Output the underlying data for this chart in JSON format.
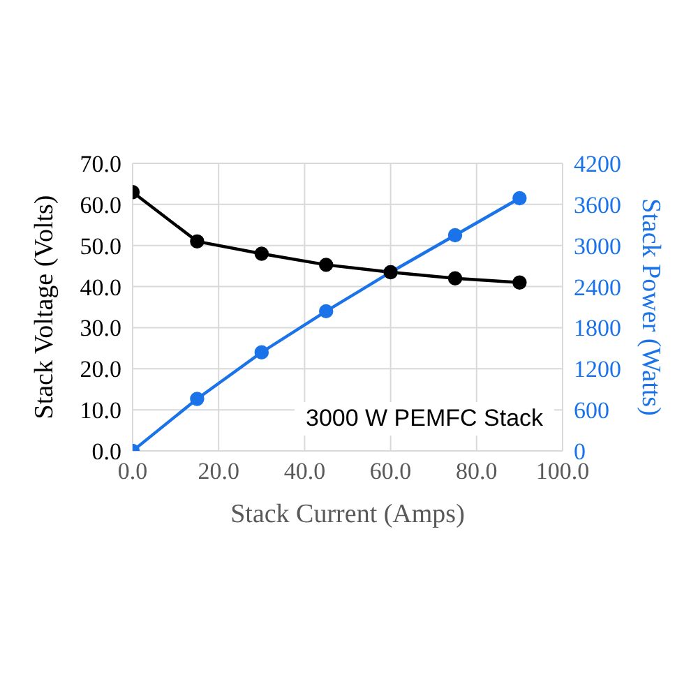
{
  "chart_data": {
    "type": "line",
    "x": [
      0,
      15,
      30,
      45,
      60,
      75,
      90
    ],
    "xlabel": "Stack Current (Amps)",
    "ylabel": "Stack Voltage (Volts)",
    "y2label": "Stack Power (Watts)",
    "series": [
      {
        "color": "#000000",
        "values": [
          63,
          51,
          48,
          45.3,
          43.5,
          42,
          41
        ]
      },
      {
        "color": "#1a73e8",
        "axis": "y2",
        "values": [
          0,
          760,
          1440,
          2040,
          2610,
          3150,
          3690
        ]
      }
    ],
    "xlim": [
      0,
      100
    ],
    "xticks": [
      {
        "value": 0,
        "label": "0.0"
      },
      {
        "value": 20,
        "label": "20.0"
      },
      {
        "value": 40,
        "label": "40.0"
      },
      {
        "value": 60,
        "label": "60.0"
      },
      {
        "value": 80,
        "label": "80.0"
      },
      {
        "value": 100,
        "label": "100.0"
      }
    ],
    "ylim": [
      0,
      70
    ],
    "yticks": [
      {
        "value": 0,
        "label": "0.0"
      },
      {
        "value": 10,
        "label": "10.0"
      },
      {
        "value": 20,
        "label": "20.0"
      },
      {
        "value": 30,
        "label": "30.0"
      },
      {
        "value": 40,
        "label": "40.0"
      },
      {
        "value": 50,
        "label": "50.0"
      },
      {
        "value": 60,
        "label": "60.0"
      },
      {
        "value": 70,
        "label": "70.0"
      }
    ],
    "y2lim": [
      0,
      4200
    ],
    "y2ticks": [
      0,
      600,
      1200,
      1800,
      2400,
      3000,
      3600,
      4200
    ],
    "annotations": [
      "3000 W PEMFC Stack"
    ],
    "grid": true,
    "marker": "circle",
    "line_style": "solid"
  }
}
